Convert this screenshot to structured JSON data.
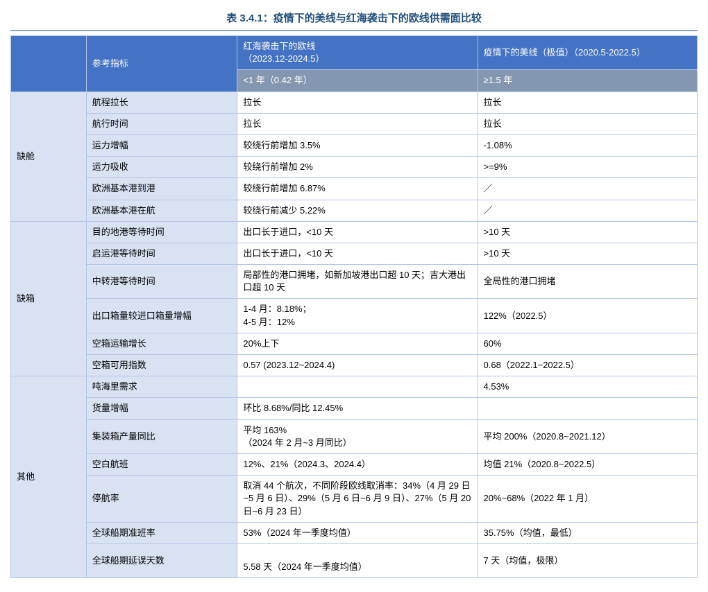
{
  "title": "表 3.4.1：疫情下的美线与红海袭击下的欧线供需面比较",
  "colors": {
    "title_color": "#1f4e79",
    "header_bg": "#4472c4",
    "subheader_bg": "#8497b0",
    "rowhead_bg": "#d9e2f3",
    "border_color": "#b4c6e7",
    "hr_color": "#1f4e79",
    "body_bg": "#ffffff",
    "header_text": "#ffffff",
    "body_text": "#000000"
  },
  "fonts": {
    "title_size": 15,
    "body_size": 13
  },
  "header": {
    "c1": "参考指标",
    "c2": "红海袭击下的欧线\n（2023.12-2024.5）",
    "c3": "疫情下的美线（极值）（2020.5-2022.5）"
  },
  "subheader": {
    "c2": "<1 年（0.42 年）",
    "c3": "≥1.5 年"
  },
  "groups": [
    {
      "name": "缺舱",
      "rows": [
        {
          "indicator": "航程拉长",
          "c2": "拉长",
          "c3": "拉长"
        },
        {
          "indicator": "航行时间",
          "c2": "拉长",
          "c3": "拉长"
        },
        {
          "indicator": "运力增幅",
          "c2": "较绕行前增加 3.5%",
          "c3": "-1.08%"
        },
        {
          "indicator": "运力吸收",
          "c2": "较绕行前增加 2%",
          "c3": ">=9%"
        },
        {
          "indicator": "欧洲基本港到港",
          "c2": "较绕行前增加 6.87%",
          "c3": "／"
        },
        {
          "indicator": "欧洲基本港在航",
          "c2": "较绕行前减少 5.22%",
          "c3": "／"
        }
      ]
    },
    {
      "name": "缺箱",
      "rows": [
        {
          "indicator": "目的地港等待时间",
          "c2": "出口长于进口，<10 天",
          "c3": ">10 天"
        },
        {
          "indicator": "启运港等待时间",
          "c2": "出口长于进口，<10 天",
          "c3": ">10 天"
        },
        {
          "indicator": "中转港等待时间",
          "c2": "局部性的港口拥堵，如新加坡港出口超 10 天；吉大港出口超 10 天",
          "c3": "全局性的港口拥堵"
        },
        {
          "indicator": "出口箱量较进口箱量增幅",
          "c2": "1-4 月：8.18%；\n4-5 月：12%",
          "c3": "122%（2022.5）"
        },
        {
          "indicator": "空箱运输增长",
          "c2": "20%上下",
          "c3": "60%"
        },
        {
          "indicator": "空箱可用指数",
          "c2": "0.57 (2023.12~2024.4)",
          "c3": "0.68（2022.1~2022.5）"
        }
      ]
    },
    {
      "name": "其他",
      "rows": [
        {
          "indicator": "吨海里需求",
          "c2": "",
          "c3": "4.53%"
        },
        {
          "indicator": "货量增幅",
          "c2": "环比 8.68%/同比 12.45%",
          "c3": ""
        },
        {
          "indicator": "集装箱产量同比",
          "c2": "平均 163%\n（2024 年 2 月~3 月同比）",
          "c3": "平均 200%（2020.8~2021.12）"
        },
        {
          "indicator": "空白航班",
          "c2": "12%、21%（2024.3、2024.4）",
          "c3": "均值 21%（2020.8~2022.5）"
        },
        {
          "indicator": "停航率",
          "c2": "取消 44 个航次，不同阶段欧线取消率：34%（4 月 29 日~5 月 6 日）、29%（5 月 6 日~6 月 9 日）、27%（5 月 20 日~6 月 23 日）",
          "c3": "20%~68%（2022 年 1 月）"
        },
        {
          "indicator": "全球船期准班率",
          "c2": "53%（2024 年一季度均值）",
          "c3": "35.75%（均值，最低）"
        },
        {
          "indicator": "全球船期延误天数",
          "c2": "\n5.58 天（2024 年一季度均值）",
          "c3": "7 天（均值，极限）"
        }
      ]
    }
  ]
}
